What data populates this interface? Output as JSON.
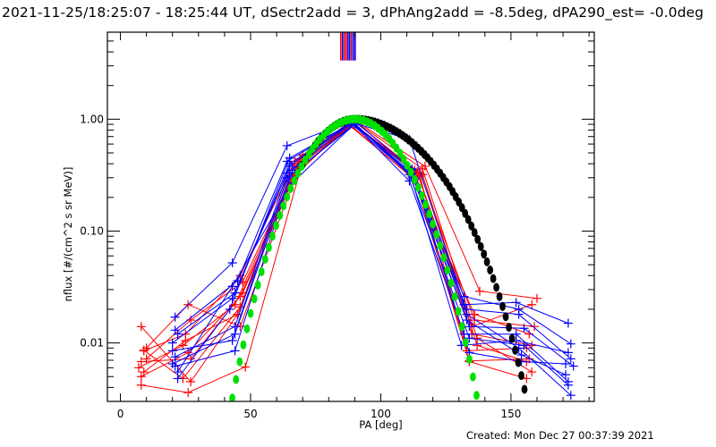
{
  "title": "2021-11-25/18:25:07 - 18:25:44 UT, dSectr2add = 3, dPhAng2add = -8.5deg, dPA290_est= -0.0deg",
  "footer": "Created: Mon Dec 27 00:37:39 2021",
  "colors": {
    "red": "#ff0000",
    "blue": "#0000ff",
    "green": "#00e000",
    "black": "#000000",
    "axis": "#000000",
    "background": "#ffffff"
  },
  "chart_data": {
    "type": "line",
    "title": "2021-11-25/18:25:07 - 18:25:44 UT, dSectr2add = 3, dPhAng2add = -8.5deg, dPA290_est= -0.0deg",
    "xlabel": "PA [deg]",
    "ylabel": "nflux [#/(cm^2 s sr MeV)]",
    "xscale": "linear",
    "yscale": "log",
    "xlim": [
      -5,
      182
    ],
    "ylim": [
      0.003,
      6.0
    ],
    "xticks": [
      0,
      50,
      100,
      150
    ],
    "xtick_labels": [
      "0",
      "50",
      "100",
      "150"
    ],
    "yticks": [
      0.01,
      0.1,
      1.0
    ],
    "ytick_labels": [
      "0.01",
      "0.10",
      "1.00"
    ],
    "vertical_markers": [
      {
        "x": 85.5,
        "color": "red"
      },
      {
        "x": 86.2,
        "color": "blue"
      },
      {
        "x": 87.0,
        "color": "red"
      },
      {
        "x": 87.8,
        "color": "red"
      },
      {
        "x": 88.6,
        "color": "blue"
      },
      {
        "x": 89.4,
        "color": "blue"
      },
      {
        "x": 90.2,
        "color": "red"
      },
      {
        "x": 91.0,
        "color": "blue"
      },
      {
        "x": 91.8,
        "color": "blue"
      }
    ],
    "fits": [
      {
        "name": "green-fit",
        "color": "green",
        "marker": "filled-ellipse",
        "x_start": 43,
        "x_end": 147,
        "step": 1.4,
        "peak_x": 90,
        "peak_y": 1.0,
        "sin_power": 15.0
      },
      {
        "name": "black-fit",
        "color": "black",
        "marker": "filled-ellipse",
        "x_start": 70,
        "x_end": 156,
        "step": 1.2,
        "peak_x": 90,
        "peak_y": 1.0,
        "sin_power_left": 15.0,
        "sin_power_right": 6.4
      }
    ],
    "series": [
      {
        "name": "r1",
        "color": "red",
        "x": [
          8,
          27,
          45,
          66,
          88,
          113,
          134,
          156
        ],
        "y": [
          0.014,
          0.0045,
          0.018,
          0.38,
          0.95,
          0.35,
          0.0068,
          0.0048
        ]
      },
      {
        "name": "r2",
        "color": "red",
        "x": [
          9,
          25,
          46,
          67,
          89,
          114,
          135,
          158
        ],
        "y": [
          0.0085,
          0.012,
          0.04,
          0.42,
          0.93,
          0.33,
          0.014,
          0.022
        ]
      },
      {
        "name": "r3",
        "color": "red",
        "x": [
          7,
          24,
          44,
          66,
          88,
          112,
          136,
          157
        ],
        "y": [
          0.006,
          0.0095,
          0.022,
          0.3,
          0.9,
          0.3,
          0.018,
          0.012
        ]
      },
      {
        "name": "r4",
        "color": "red",
        "x": [
          8,
          26,
          48,
          70,
          90,
          117,
          138,
          160
        ],
        "y": [
          0.0042,
          0.0036,
          0.0061,
          0.42,
          0.98,
          0.38,
          0.029,
          0.025
        ]
      },
      {
        "name": "r5",
        "color": "red",
        "x": [
          10,
          26,
          46,
          68,
          89,
          115,
          133,
          156
        ],
        "y": [
          0.009,
          0.022,
          0.014,
          0.35,
          0.9,
          0.31,
          0.0085,
          0.009
        ]
      },
      {
        "name": "r6",
        "color": "red",
        "x": [
          8,
          27,
          47,
          70,
          90,
          116,
          137,
          158
        ],
        "y": [
          0.0068,
          0.0072,
          0.028,
          0.48,
          0.96,
          0.36,
          0.011,
          0.0055
        ]
      },
      {
        "name": "r7",
        "color": "red",
        "x": [
          9,
          25,
          45,
          67,
          88,
          113,
          134,
          157
        ],
        "y": [
          0.0055,
          0.0105,
          0.018,
          0.33,
          0.88,
          0.29,
          0.0069,
          0.0072
        ]
      },
      {
        "name": "r8",
        "color": "red",
        "x": [
          8,
          26,
          46,
          69,
          89,
          115,
          136,
          159
        ],
        "y": [
          0.005,
          0.0082,
          0.026,
          0.4,
          0.92,
          0.33,
          0.016,
          0.014
        ]
      },
      {
        "name": "r9",
        "color": "red",
        "x": [
          10,
          27,
          47,
          69,
          90,
          114,
          135,
          158
        ],
        "y": [
          0.0072,
          0.016,
          0.035,
          0.44,
          0.95,
          0.34,
          0.012,
          0.0095
        ]
      },
      {
        "name": "r10",
        "color": "red",
        "x": [
          9,
          24,
          46,
          68,
          89,
          116,
          137,
          156
        ],
        "y": [
          0.0086,
          0.0048,
          0.021,
          0.37,
          0.91,
          0.32,
          0.0095,
          0.0068
        ]
      },
      {
        "name": "b1",
        "color": "blue",
        "x": [
          21,
          43,
          64,
          88,
          111,
          132,
          152,
          172
        ],
        "y": [
          0.017,
          0.052,
          0.58,
          0.95,
          0.66,
          0.022,
          0.023,
          0.015
        ]
      },
      {
        "name": "b2",
        "color": "blue",
        "x": [
          22,
          44,
          65,
          89,
          112,
          133,
          153,
          173
        ],
        "y": [
          0.012,
          0.028,
          0.4,
          0.92,
          0.33,
          0.02,
          0.018,
          0.0072
        ]
      },
      {
        "name": "b3",
        "color": "blue",
        "x": [
          20,
          43,
          64,
          90,
          113,
          134,
          154,
          171
        ],
        "y": [
          0.0085,
          0.0105,
          0.3,
          0.9,
          0.3,
          0.0082,
          0.0068,
          0.0065
        ]
      },
      {
        "name": "b4",
        "color": "blue",
        "x": [
          21,
          44,
          66,
          89,
          111,
          132,
          152,
          172
        ],
        "y": [
          0.0062,
          0.0085,
          0.35,
          0.93,
          0.28,
          0.012,
          0.012,
          0.0045
        ]
      },
      {
        "name": "b5",
        "color": "blue",
        "x": [
          22,
          42,
          65,
          90,
          112,
          133,
          153,
          173
        ],
        "y": [
          0.0048,
          0.02,
          0.45,
          0.96,
          0.36,
          0.018,
          0.009,
          0.0034
        ]
      },
      {
        "name": "b6",
        "color": "blue",
        "x": [
          20,
          43,
          64,
          88,
          112,
          134,
          155,
          174
        ],
        "y": [
          0.01,
          0.025,
          0.33,
          0.94,
          0.31,
          0.014,
          0.0135,
          0.0062
        ]
      },
      {
        "name": "b7",
        "color": "blue",
        "x": [
          21,
          44,
          65,
          89,
          111,
          131,
          152,
          172
        ],
        "y": [
          0.0075,
          0.014,
          0.38,
          0.95,
          0.34,
          0.0095,
          0.0105,
          0.0082
        ]
      },
      {
        "name": "b8",
        "color": "blue",
        "x": [
          22,
          43,
          66,
          90,
          113,
          133,
          154,
          171
        ],
        "y": [
          0.0055,
          0.032,
          0.27,
          0.91,
          0.29,
          0.016,
          0.0078,
          0.0052
        ]
      },
      {
        "name": "b9",
        "color": "blue",
        "x": [
          21,
          45,
          64,
          89,
          112,
          132,
          153,
          173
        ],
        "y": [
          0.013,
          0.036,
          0.42,
          0.93,
          0.35,
          0.026,
          0.02,
          0.0098
        ]
      },
      {
        "name": "b10",
        "color": "blue",
        "x": [
          20,
          44,
          65,
          90,
          111,
          134,
          155,
          172
        ],
        "y": [
          0.0065,
          0.012,
          0.31,
          0.92,
          0.32,
          0.011,
          0.0095,
          0.0042
        ]
      }
    ]
  }
}
